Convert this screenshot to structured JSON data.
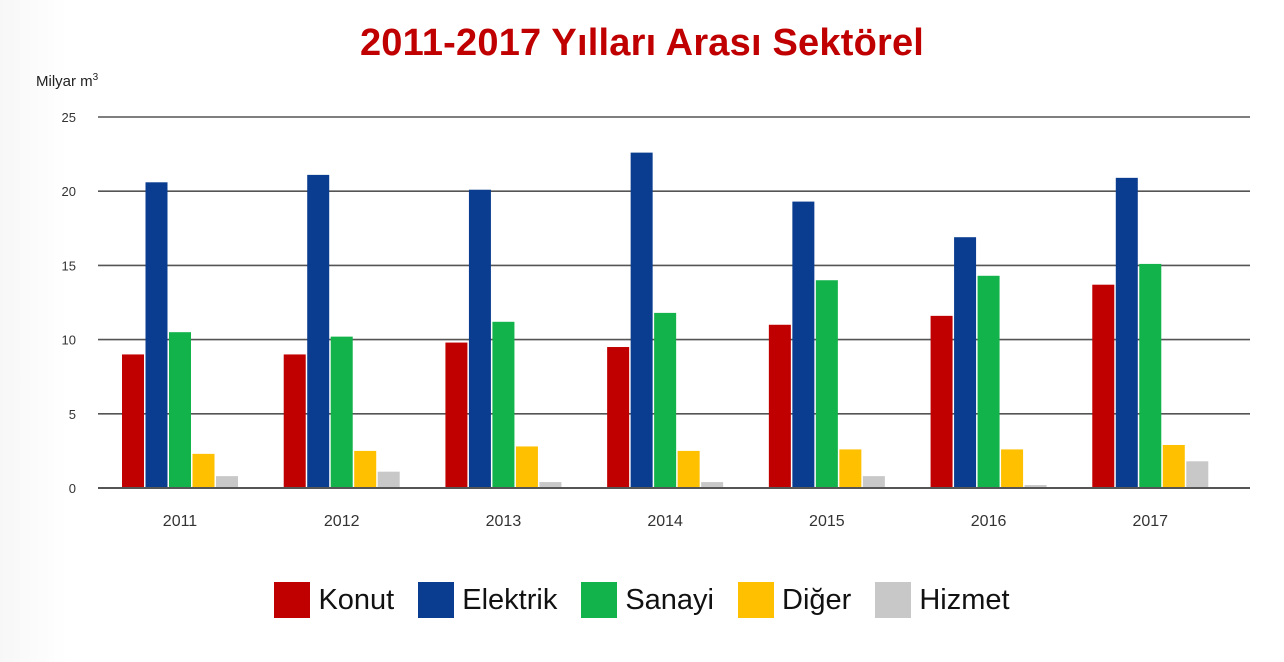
{
  "chart_data": {
    "type": "bar",
    "title": "2011-2017 Yılları Arası Sektörel",
    "ylabel": "Milyar m",
    "ylabel_sup": "3",
    "ylim": [
      0,
      25
    ],
    "yticks": [
      0,
      5,
      10,
      15,
      20,
      25
    ],
    "grid": true,
    "legend_position": "bottom",
    "categories": [
      "2011",
      "2012",
      "2013",
      "2014",
      "2015",
      "2016",
      "2017"
    ],
    "series": [
      {
        "name": "Konut",
        "color": "#c00000",
        "values": [
          9.0,
          9.0,
          9.8,
          9.5,
          11.0,
          11.6,
          13.7
        ]
      },
      {
        "name": "Elektrik",
        "color": "#0a3c8f",
        "values": [
          20.6,
          21.1,
          20.1,
          22.6,
          19.3,
          16.9,
          20.9
        ]
      },
      {
        "name": "Sanayi",
        "color": "#12b34a",
        "values": [
          10.5,
          10.2,
          11.2,
          11.8,
          14.0,
          14.3,
          15.1
        ]
      },
      {
        "name": "Diğer",
        "color": "#ffc000",
        "values": [
          2.3,
          2.5,
          2.8,
          2.5,
          2.6,
          2.6,
          2.9
        ]
      },
      {
        "name": "Hizmet",
        "color": "#c8c8c8",
        "values": [
          0.8,
          1.1,
          0.4,
          0.4,
          0.8,
          0.2,
          1.8
        ]
      }
    ]
  }
}
